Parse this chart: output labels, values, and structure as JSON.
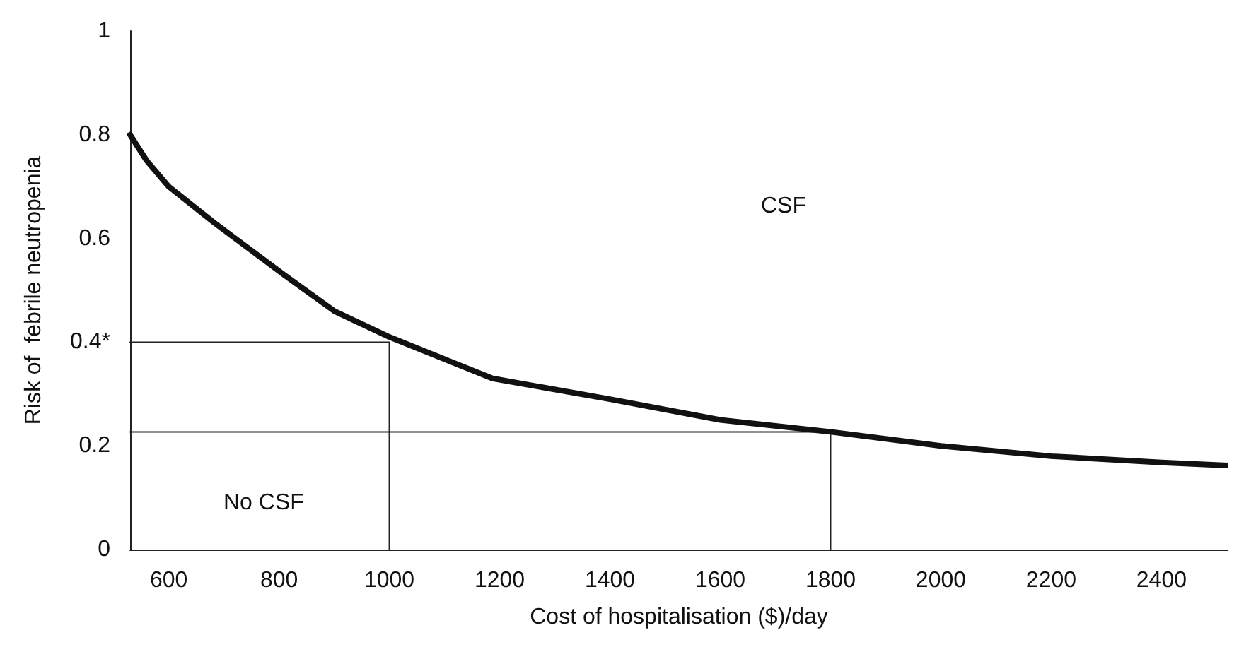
{
  "chart_data": {
    "type": "line",
    "xlabel": "Cost of hospitalisation ($)/day",
    "ylabel": "Risk of  febrile neutropenia",
    "xlim": [
      530,
      2520
    ],
    "xticks": [
      600,
      800,
      1000,
      1200,
      1400,
      1600,
      1800,
      2000,
      2200,
      2400
    ],
    "ylim": [
      0,
      1
    ],
    "yticks": [
      0,
      0.2,
      {
        "value": 0.4,
        "label": "0.4*"
      },
      0.6,
      0.8,
      1
    ],
    "grid": false,
    "marker": "none",
    "line_style": "solid",
    "series": [
      {
        "color": "#111111",
        "x": [
          530,
          560,
          600,
          683,
          809,
          900,
          1000,
          1187,
          1400,
          1600,
          1800,
          2000,
          2200,
          2400,
          2520
        ],
        "values": [
          0.8,
          0.75,
          0.7,
          0.63,
          0.53,
          0.46,
          0.41,
          0.33,
          0.29,
          0.25,
          0.227,
          0.2,
          0.18,
          0.168,
          0.162
        ]
      },
      {
        "color": "#222222",
        "x": [
          530,
          1000,
          1000
        ],
        "values": [
          0.4,
          0.4,
          0
        ]
      },
      {
        "color": "#222222",
        "x": [
          530,
          1800,
          1800
        ],
        "values": [
          0.227,
          0.227,
          0
        ]
      }
    ],
    "annotations": [
      "CSF",
      "No CSF"
    ]
  }
}
